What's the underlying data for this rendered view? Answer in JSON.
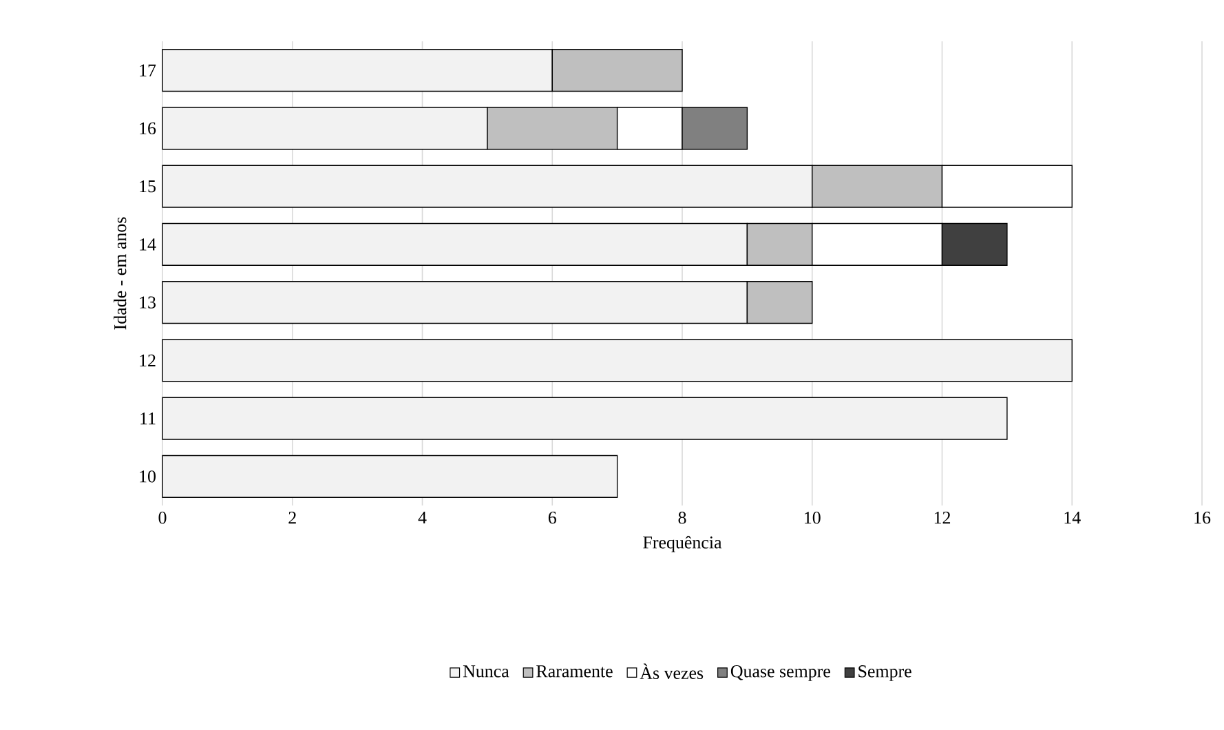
{
  "chart_data": {
    "type": "bar",
    "orientation": "horizontal",
    "stacked": true,
    "xlabel": "Frequência",
    "ylabel": "Idade - em anos",
    "categories": [
      "17",
      "16",
      "15",
      "14",
      "13",
      "12",
      "11",
      "10"
    ],
    "series": [
      {
        "name": "Nunca",
        "color": "#f2f2f2",
        "values": [
          6,
          5,
          10,
          9,
          9,
          14,
          13,
          7
        ]
      },
      {
        "name": "Raramente",
        "color": "#bfbfbf",
        "values": [
          2,
          2,
          2,
          1,
          1,
          null,
          null,
          null
        ]
      },
      {
        "name": "Às vezes",
        "color": "#ffffff",
        "values": [
          null,
          1,
          2,
          2,
          null,
          null,
          null,
          null
        ]
      },
      {
        "name": "Quase sempre",
        "color": "#808080",
        "values": [
          null,
          1,
          null,
          null,
          null,
          null,
          null,
          null
        ]
      },
      {
        "name": "Sempre",
        "color": "#404040",
        "values": [
          null,
          null,
          null,
          1,
          null,
          null,
          null,
          null
        ]
      }
    ],
    "xlim": [
      0,
      16
    ],
    "xticks": [
      0,
      2,
      4,
      6,
      8,
      10,
      12,
      14,
      16
    ],
    "grid": "x",
    "legend": "bottom"
  }
}
